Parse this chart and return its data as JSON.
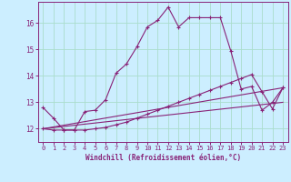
{
  "xlabel": "Windchill (Refroidissement éolien,°C)",
  "background_color": "#cceeff",
  "grid_color": "#aaddcc",
  "line_color": "#882277",
  "x_ticks": [
    0,
    1,
    2,
    3,
    4,
    5,
    6,
    7,
    8,
    9,
    10,
    11,
    12,
    13,
    14,
    15,
    16,
    17,
    18,
    19,
    20,
    21,
    22,
    23
  ],
  "y_ticks": [
    12,
    13,
    14,
    15,
    16
  ],
  "ylim": [
    11.5,
    16.8
  ],
  "xlim": [
    -0.5,
    23.5
  ],
  "line1_x": [
    0,
    1,
    2,
    3,
    4,
    5,
    6,
    7,
    8,
    9,
    10,
    11,
    12,
    13,
    14,
    15,
    16,
    17,
    18,
    19,
    20,
    21,
    22,
    23
  ],
  "line1_y": [
    12.8,
    12.4,
    11.95,
    11.95,
    12.65,
    12.7,
    13.1,
    14.1,
    14.45,
    15.1,
    15.85,
    16.1,
    16.6,
    15.85,
    16.2,
    16.2,
    16.2,
    16.2,
    14.95,
    13.5,
    13.6,
    12.7,
    13.0,
    13.55
  ],
  "line2_x": [
    0,
    1,
    2,
    3,
    4,
    5,
    6,
    7,
    8,
    9,
    10,
    11,
    12,
    13,
    14,
    15,
    16,
    17,
    18,
    19,
    20,
    21,
    22,
    23
  ],
  "line2_y": [
    12.0,
    11.95,
    11.95,
    11.95,
    11.95,
    12.0,
    12.05,
    12.15,
    12.25,
    12.4,
    12.55,
    12.7,
    12.85,
    13.0,
    13.15,
    13.3,
    13.45,
    13.6,
    13.75,
    13.9,
    14.05,
    13.4,
    12.75,
    13.55
  ],
  "line3_x": [
    0,
    23
  ],
  "line3_y": [
    12.0,
    13.55
  ],
  "line4_x": [
    0,
    23
  ],
  "line4_y": [
    12.0,
    13.0
  ],
  "tick_fontsize": 5.0,
  "xlabel_fontsize": 5.5,
  "marker_size": 3.5,
  "linewidth": 0.8
}
